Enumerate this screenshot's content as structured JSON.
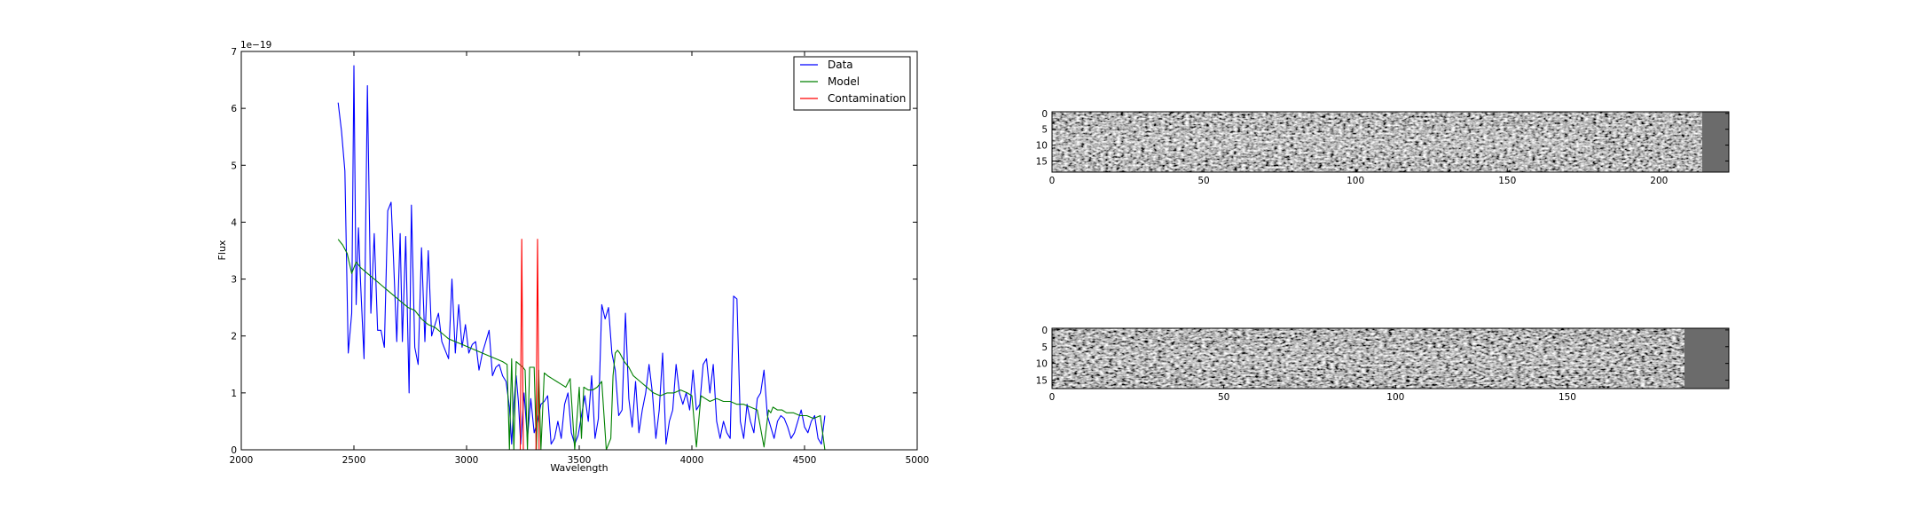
{
  "chart_data": [
    {
      "type": "line",
      "xlabel": "Wavelength",
      "ylabel": "Flux",
      "offset_text": "1e−19",
      "xlim": [
        2000,
        5000
      ],
      "ylim": [
        0,
        7
      ],
      "xticks": [
        "2000",
        "2500",
        "3000",
        "3500",
        "4000",
        "4500",
        "5000"
      ],
      "yticks": [
        "0",
        "1",
        "2",
        "3",
        "4",
        "5",
        "6",
        "7"
      ],
      "legend_position": "upper right",
      "series": [
        {
          "name": "Data",
          "color": "#0000ff",
          "x": [
            2430,
            2445,
            2460,
            2475,
            2490,
            2500,
            2510,
            2520,
            2530,
            2545,
            2560,
            2575,
            2590,
            2605,
            2620,
            2635,
            2650,
            2665,
            2675,
            2690,
            2705,
            2715,
            2730,
            2745,
            2755,
            2770,
            2785,
            2800,
            2815,
            2830,
            2845,
            2860,
            2875,
            2890,
            2905,
            2920,
            2935,
            2950,
            2965,
            2980,
            2995,
            3010,
            3025,
            3040,
            3055,
            3070,
            3085,
            3100,
            3115,
            3130,
            3145,
            3160,
            3175,
            3190,
            3200,
            3210,
            3220,
            3230,
            3240,
            3255,
            3270,
            3285,
            3300,
            3315,
            3330,
            3345,
            3360,
            3375,
            3390,
            3405,
            3420,
            3435,
            3450,
            3465,
            3480,
            3495,
            3510,
            3525,
            3540,
            3555,
            3570,
            3585,
            3600,
            3615,
            3630,
            3645,
            3660,
            3675,
            3690,
            3705,
            3720,
            3735,
            3750,
            3765,
            3780,
            3795,
            3810,
            3825,
            3840,
            3855,
            3870,
            3885,
            3900,
            3915,
            3930,
            3945,
            3960,
            3975,
            3990,
            4005,
            4020,
            4035,
            4050,
            4065,
            4080,
            4095,
            4110,
            4125,
            4140,
            4155,
            4170,
            4185,
            4200,
            4215,
            4230,
            4245,
            4260,
            4275,
            4290,
            4305,
            4320,
            4335,
            4350,
            4365,
            4380,
            4395,
            4410,
            4425,
            4440,
            4455,
            4470,
            4485,
            4500,
            4515,
            4530,
            4545,
            4560,
            4575,
            4590
          ],
          "y": [
            6.1,
            5.6,
            4.9,
            1.7,
            2.4,
            6.75,
            2.55,
            3.9,
            2.9,
            1.6,
            6.4,
            2.4,
            3.8,
            2.1,
            2.1,
            1.8,
            4.2,
            4.35,
            3.4,
            1.9,
            3.8,
            1.9,
            3.75,
            1.0,
            4.3,
            1.8,
            1.5,
            3.55,
            1.9,
            3.5,
            2.0,
            2.2,
            2.4,
            1.9,
            1.75,
            1.6,
            3.0,
            1.7,
            2.55,
            1.8,
            2.2,
            1.7,
            1.85,
            1.9,
            1.4,
            1.7,
            1.9,
            2.1,
            1.3,
            1.45,
            1.5,
            1.3,
            1.2,
            0.75,
            0.1,
            0.8,
            1.3,
            0.85,
            0.1,
            1.0,
            0.2,
            0.9,
            0.3,
            0.5,
            0.8,
            0.85,
            0.95,
            0.1,
            0.2,
            0.5,
            0.2,
            0.8,
            1.0,
            0.3,
            0.1,
            0.25,
            0.6,
            0.95,
            0.5,
            1.3,
            0.2,
            0.55,
            2.55,
            2.3,
            2.5,
            1.7,
            1.4,
            0.6,
            0.7,
            2.4,
            0.9,
            0.4,
            1.2,
            0.3,
            0.7,
            1.0,
            1.5,
            1.0,
            0.2,
            0.7,
            1.7,
            0.1,
            0.5,
            0.7,
            1.5,
            1.0,
            0.8,
            1.0,
            0.7,
            1.4,
            0.7,
            0.8,
            1.5,
            1.6,
            1.0,
            1.5,
            0.5,
            0.2,
            0.5,
            0.3,
            0.2,
            2.7,
            2.65,
            0.5,
            0.2,
            0.8,
            0.5,
            0.3,
            0.9,
            1.0,
            1.4,
            0.6,
            0.4,
            0.2,
            0.5,
            0.6,
            0.55,
            0.4,
            0.2,
            0.3,
            0.5,
            0.7,
            0.4,
            0.3,
            0.5,
            0.6,
            0.2,
            0.1,
            0.6
          ]
        },
        {
          "name": "Model",
          "color": "#008000",
          "x": [
            2430,
            2450,
            2470,
            2490,
            2500,
            2510,
            2530,
            2560,
            2590,
            2620,
            2650,
            2680,
            2710,
            2740,
            2770,
            2800,
            2830,
            2860,
            2890,
            2920,
            2950,
            2980,
            3010,
            3040,
            3070,
            3100,
            3130,
            3160,
            3180,
            3190,
            3200,
            3210,
            3220,
            3235,
            3250,
            3260,
            3270,
            3280,
            3300,
            3310,
            3320,
            3330,
            3345,
            3360,
            3380,
            3400,
            3420,
            3440,
            3460,
            3480,
            3500,
            3510,
            3520,
            3540,
            3560,
            3580,
            3600,
            3620,
            3640,
            3650,
            3660,
            3670,
            3680,
            3700,
            3720,
            3740,
            3770,
            3800,
            3830,
            3860,
            3890,
            3920,
            3950,
            3980,
            4000,
            4020,
            4040,
            4060,
            4080,
            4110,
            4140,
            4170,
            4200,
            4230,
            4260,
            4290,
            4320,
            4340,
            4350,
            4360,
            4380,
            4400,
            4420,
            4450,
            4480,
            4510,
            4540,
            4570,
            4590
          ],
          "y": [
            3.7,
            3.6,
            3.45,
            3.1,
            3.2,
            3.3,
            3.2,
            3.1,
            3.0,
            2.9,
            2.8,
            2.7,
            2.6,
            2.5,
            2.45,
            2.3,
            2.2,
            2.15,
            2.05,
            1.95,
            1.9,
            1.85,
            1.8,
            1.75,
            1.7,
            1.65,
            1.6,
            1.55,
            1.5,
            0.0,
            1.6,
            0.0,
            1.55,
            1.5,
            1.45,
            1.4,
            0.0,
            1.45,
            1.45,
            0.0,
            1.4,
            0.0,
            1.35,
            1.3,
            1.25,
            1.2,
            1.15,
            1.1,
            1.25,
            0.0,
            1.1,
            0.2,
            1.1,
            1.05,
            1.05,
            1.1,
            1.2,
            0.0,
            0.2,
            1.3,
            1.7,
            1.75,
            1.7,
            1.55,
            1.45,
            1.3,
            1.2,
            1.1,
            1.0,
            0.95,
            1.0,
            1.0,
            1.05,
            1.0,
            0.95,
            0.05,
            0.95,
            0.9,
            0.85,
            0.9,
            0.85,
            0.85,
            0.8,
            0.8,
            0.75,
            0.7,
            0.05,
            0.7,
            0.65,
            0.75,
            0.7,
            0.7,
            0.65,
            0.65,
            0.6,
            0.6,
            0.55,
            0.6,
            0.0
          ]
        },
        {
          "name": "Contamination",
          "color": "#ff0000",
          "x": [
            2430,
            3230,
            3238,
            3245,
            3252,
            3262,
            3300,
            3308,
            3315,
            3322,
            3330,
            4590
          ],
          "y": [
            0,
            0,
            0,
            3.7,
            0,
            0,
            0,
            0,
            3.7,
            0,
            0,
            0
          ]
        }
      ]
    },
    {
      "type": "heatmap",
      "xlim": [
        0,
        223
      ],
      "ylim": [
        0,
        19
      ],
      "xticks": [
        "0",
        "50",
        "100",
        "150",
        "200"
      ],
      "yticks": [
        "0",
        "5",
        "10",
        "15"
      ],
      "colormap": "gray"
    },
    {
      "type": "heatmap",
      "xlim": [
        0,
        197
      ],
      "ylim": [
        0,
        18
      ],
      "xticks": [
        "0",
        "50",
        "100",
        "150"
      ],
      "yticks": [
        "0",
        "5",
        "10",
        "15"
      ],
      "colormap": "gray"
    }
  ]
}
